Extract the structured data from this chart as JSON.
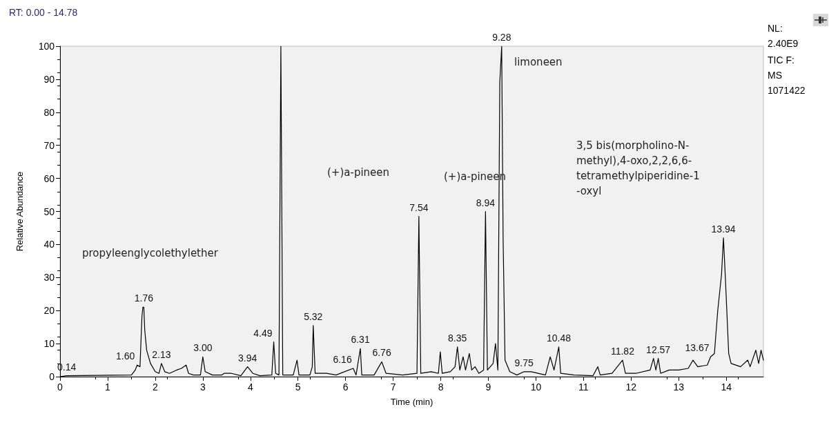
{
  "chart_data": {
    "type": "line",
    "title": "RT: 0.00 - 14.78",
    "xlabel": "Time (min)",
    "ylabel": "Relative Abundance",
    "color": "#000000",
    "marker": "none",
    "line_style": "solid",
    "grid": false,
    "xlim": [
      0,
      14.78
    ],
    "xticks": [
      0,
      1,
      2,
      3,
      4,
      5,
      6,
      7,
      8,
      9,
      10,
      11,
      12,
      13,
      14
    ],
    "ylim": [
      0,
      100
    ],
    "yticks": [
      0,
      10,
      20,
      30,
      40,
      50,
      60,
      70,
      80,
      90,
      100
    ],
    "x": [
      0,
      0.14,
      1.5,
      1.58,
      1.62,
      1.68,
      1.72,
      1.74,
      1.76,
      1.78,
      1.82,
      1.9,
      2.0,
      2.08,
      2.13,
      2.2,
      2.3,
      2.45,
      2.55,
      2.65,
      2.7,
      2.8,
      2.95,
      3.0,
      3.05,
      3.2,
      3.4,
      3.45,
      3.6,
      3.8,
      3.94,
      4.05,
      4.2,
      4.45,
      4.49,
      4.53,
      4.6,
      4.64,
      4.68,
      4.9,
      4.98,
      5.02,
      5.25,
      5.3,
      5.32,
      5.36,
      5.6,
      5.8,
      6.16,
      6.22,
      6.31,
      6.34,
      6.6,
      6.7,
      6.76,
      6.85,
      7.2,
      7.5,
      7.54,
      7.58,
      7.8,
      7.95,
      7.99,
      8.03,
      8.2,
      8.3,
      8.35,
      8.4,
      8.47,
      8.52,
      8.6,
      8.65,
      8.72,
      8.8,
      8.9,
      8.94,
      8.98,
      9.1,
      9.15,
      9.2,
      9.24,
      9.28,
      9.31,
      9.35,
      9.45,
      9.6,
      9.75,
      9.9,
      10.2,
      10.3,
      10.38,
      10.48,
      10.52,
      10.8,
      11.2,
      11.3,
      11.35,
      11.6,
      11.82,
      11.88,
      12.1,
      12.4,
      12.47,
      12.52,
      12.57,
      12.62,
      12.8,
      13.0,
      13.2,
      13.3,
      13.4,
      13.6,
      13.67,
      13.75,
      13.82,
      13.9,
      13.94,
      13.98,
      14.05,
      14.1,
      14.3,
      14.45,
      14.5,
      14.62,
      14.68,
      14.73,
      14.78
    ],
    "values": [
      0,
      0.3,
      0.5,
      2,
      3.5,
      3,
      18,
      21,
      21,
      14,
      8,
      4,
      1.5,
      1,
      4,
      1.5,
      1,
      2,
      2.5,
      3.5,
      1,
      0.5,
      0.5,
      6,
      1.5,
      0.5,
      0.5,
      1,
      1,
      0.3,
      3,
      1,
      0.3,
      0.5,
      10.5,
      1,
      0.5,
      100,
      0.5,
      0.5,
      5,
      0.5,
      0.5,
      3,
      15.5,
      1,
      1,
      0.5,
      2.5,
      0.5,
      8.5,
      0.5,
      0.5,
      3,
      4.5,
      1,
      0.5,
      1,
      48.5,
      1,
      1.5,
      1,
      7.5,
      1,
      1.5,
      3,
      9,
      2,
      6,
      2,
      7,
      2,
      3,
      1,
      2,
      50,
      2,
      4,
      10,
      2,
      89,
      100,
      42,
      5,
      1.5,
      0.5,
      1.5,
      1.5,
      0.5,
      6,
      2,
      9,
      1,
      0.5,
      0.3,
      3,
      0.5,
      1,
      5,
      1,
      1,
      2,
      5.5,
      2,
      5.5,
      1,
      2,
      2,
      2.5,
      5,
      3,
      3.5,
      6,
      7,
      20,
      31,
      42,
      30,
      7,
      4,
      3,
      5,
      3,
      8,
      4,
      8,
      5
    ],
    "annotations": [
      {
        "text": "0.14",
        "x": 0.14,
        "y": 0.3
      },
      {
        "text": "1.60",
        "x": 1.6,
        "y": 3.5
      },
      {
        "text": "1.76",
        "x": 1.76,
        "y": 21
      },
      {
        "text": "2.13",
        "x": 2.13,
        "y": 4
      },
      {
        "text": "3.00",
        "x": 3.0,
        "y": 6
      },
      {
        "text": "3.94",
        "x": 3.94,
        "y": 3
      },
      {
        "text": "4.49",
        "x": 4.49,
        "y": 10.5
      },
      {
        "text": "5.32",
        "x": 5.32,
        "y": 15.5
      },
      {
        "text": "6.16",
        "x": 6.16,
        "y": 2.5
      },
      {
        "text": "6.31",
        "x": 6.31,
        "y": 8.5
      },
      {
        "text": "6.76",
        "x": 6.76,
        "y": 4.5
      },
      {
        "text": "7.54",
        "x": 7.54,
        "y": 48.5
      },
      {
        "text": "8.35",
        "x": 8.35,
        "y": 9
      },
      {
        "text": "8.94",
        "x": 8.94,
        "y": 50
      },
      {
        "text": "9.28",
        "x": 9.28,
        "y": 100
      },
      {
        "text": "9.75",
        "x": 9.75,
        "y": 1.5
      },
      {
        "text": "10.48",
        "x": 10.48,
        "y": 9
      },
      {
        "text": "11.82",
        "x": 11.82,
        "y": 5
      },
      {
        "text": "12.57",
        "x": 12.57,
        "y": 5.5
      },
      {
        "text": "13.67",
        "x": 13.67,
        "y": 6
      },
      {
        "text": "13.94",
        "x": 13.94,
        "y": 42
      },
      "propyleenglycolethylether",
      "(+)a-pineen",
      "(+)a-pineen",
      "limoneen",
      "3,5 bis(morpholino-N-\nmethyl),4-oxo,2,2,6,6-\ntetramethylpiperidine-1\n-oxyl",
      "NL: 2.40E9",
      "TIC F:   MS 1071422"
    ]
  }
}
